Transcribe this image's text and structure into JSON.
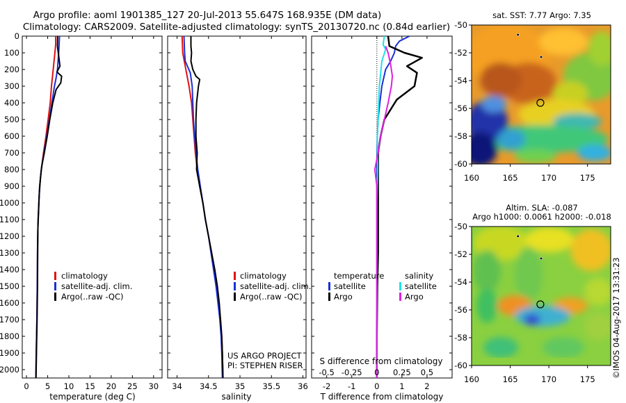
{
  "header": {
    "line1": "Argo profile: aoml 1901385_127 20-Jul-2013 55.647S 168.935E (DM data)",
    "line2": "Climatology: CARS2009. Satellite-adjusted climatology: synTS_20130720.nc (0.84d earlier)"
  },
  "depth_ticks": [
    "0",
    "100",
    "200",
    "300",
    "400",
    "500",
    "600",
    "700",
    "800",
    "900",
    "1000",
    "1100",
    "1200",
    "1300",
    "1400",
    "1500",
    "1600",
    "1700",
    "1800",
    "1900",
    "2000"
  ],
  "colors": {
    "climatology": "#e01010",
    "satellite": "#1a2fd6",
    "argo": "#000000",
    "argo_s_diff": "#e020e0",
    "sat_s_diff": "#20e0e8"
  },
  "chart_data": [
    {
      "type": "line",
      "xlabel": "temperature (deg C)",
      "xlim": [
        -1,
        32
      ],
      "ylim": [
        2050,
        0
      ],
      "xticks": [
        0,
        5,
        10,
        15,
        20,
        25,
        30
      ],
      "legend": [
        "climatology",
        "satellite-adj. clim.",
        "Argo(..raw -QC)"
      ],
      "legend_placement": "lower-right",
      "series": [
        {
          "name": "climatology",
          "color": "#e01010",
          "points": [
            [
              6.9,
              0
            ],
            [
              6.9,
              50
            ],
            [
              6.7,
              100
            ],
            [
              6.3,
              200
            ],
            [
              5.9,
              300
            ],
            [
              5.6,
              400
            ],
            [
              5.1,
              500
            ],
            [
              4.6,
              600
            ],
            [
              4.0,
              700
            ],
            [
              3.5,
              800
            ],
            [
              3.1,
              900
            ],
            [
              2.9,
              1000
            ],
            [
              2.75,
              1100
            ],
            [
              2.65,
              1200
            ],
            [
              2.6,
              1300
            ],
            [
              2.55,
              1500
            ],
            [
              2.45,
              1700
            ],
            [
              2.3,
              1900
            ],
            [
              2.2,
              2050
            ]
          ]
        },
        {
          "name": "satellite-adj. clim.",
          "color": "#1a2fd6",
          "points": [
            [
              7.8,
              0
            ],
            [
              7.7,
              50
            ],
            [
              7.6,
              100
            ],
            [
              7.3,
              200
            ],
            [
              7.0,
              250
            ],
            [
              6.6,
              300
            ],
            [
              6.0,
              400
            ],
            [
              5.4,
              500
            ],
            [
              4.8,
              600
            ],
            [
              4.1,
              700
            ],
            [
              3.5,
              800
            ],
            [
              3.1,
              900
            ],
            [
              2.9,
              1000
            ],
            [
              2.75,
              1100
            ],
            [
              2.65,
              1200
            ],
            [
              2.6,
              1300
            ],
            [
              2.55,
              1500
            ],
            [
              2.45,
              1700
            ],
            [
              2.3,
              1900
            ],
            [
              2.2,
              2050
            ]
          ]
        },
        {
          "name": "Argo(..raw -QC)",
          "color": "#000000",
          "points": [
            [
              7.35,
              0
            ],
            [
              7.3,
              60
            ],
            [
              7.6,
              120
            ],
            [
              7.9,
              180
            ],
            [
              7.2,
              215
            ],
            [
              8.3,
              240
            ],
            [
              8.1,
              280
            ],
            [
              7.0,
              320
            ],
            [
              6.2,
              400
            ],
            [
              5.5,
              500
            ],
            [
              4.9,
              600
            ],
            [
              4.2,
              700
            ],
            [
              3.6,
              780
            ],
            [
              3.3,
              850
            ],
            [
              3.0,
              950
            ],
            [
              2.85,
              1050
            ],
            [
              2.7,
              1150
            ],
            [
              2.65,
              1300
            ],
            [
              2.6,
              1500
            ],
            [
              2.5,
              1700
            ],
            [
              2.35,
              1900
            ],
            [
              2.25,
              2050
            ]
          ]
        }
      ]
    },
    {
      "type": "line",
      "xlabel": "salinity",
      "xlim": [
        33.85,
        36.05
      ],
      "ylim": [
        2050,
        0
      ],
      "xticks": [
        34,
        34.5,
        35,
        35.5,
        36
      ],
      "legend": [
        "climatology",
        "satellite-adj. clim.",
        "Argo(..raw -QC)"
      ],
      "legend_placement": "lower-right",
      "annotation": [
        "US ARGO PROJECT",
        "PI: STEPHEN RISER"
      ],
      "series": [
        {
          "name": "climatology",
          "color": "#e01010",
          "points": [
            [
              34.08,
              0
            ],
            [
              34.09,
              100
            ],
            [
              34.14,
              200
            ],
            [
              34.19,
              300
            ],
            [
              34.23,
              400
            ],
            [
              34.25,
              500
            ],
            [
              34.27,
              600
            ],
            [
              34.29,
              700
            ],
            [
              34.32,
              800
            ],
            [
              34.36,
              900
            ],
            [
              34.41,
              1000
            ],
            [
              34.45,
              1100
            ],
            [
              34.5,
              1200
            ],
            [
              34.55,
              1300
            ],
            [
              34.59,
              1400
            ],
            [
              34.63,
              1500
            ],
            [
              34.66,
              1600
            ],
            [
              34.69,
              1700
            ],
            [
              34.71,
              1800
            ],
            [
              34.72,
              1900
            ],
            [
              34.73,
              2050
            ]
          ]
        },
        {
          "name": "satellite-adj. clim.",
          "color": "#1a2fd6",
          "points": [
            [
              34.11,
              0
            ],
            [
              34.12,
              100
            ],
            [
              34.13,
              150
            ],
            [
              34.21,
              220
            ],
            [
              34.24,
              300
            ],
            [
              34.25,
              400
            ],
            [
              34.26,
              500
            ],
            [
              34.28,
              600
            ],
            [
              34.3,
              700
            ],
            [
              34.33,
              800
            ],
            [
              34.37,
              900
            ],
            [
              34.41,
              1000
            ],
            [
              34.45,
              1100
            ],
            [
              34.5,
              1200
            ],
            [
              34.54,
              1300
            ],
            [
              34.58,
              1400
            ],
            [
              34.62,
              1500
            ],
            [
              34.65,
              1600
            ],
            [
              34.68,
              1700
            ],
            [
              34.7,
              1800
            ],
            [
              34.71,
              1900
            ],
            [
              34.72,
              2050
            ]
          ]
        },
        {
          "name": "Argo(..raw -QC)",
          "color": "#000000",
          "points": [
            [
              34.22,
              0
            ],
            [
              34.22,
              60
            ],
            [
              34.23,
              100
            ],
            [
              34.22,
              150
            ],
            [
              34.25,
              200
            ],
            [
              34.3,
              240
            ],
            [
              34.36,
              260
            ],
            [
              34.34,
              300
            ],
            [
              34.31,
              400
            ],
            [
              34.3,
              500
            ],
            [
              34.3,
              600
            ],
            [
              34.32,
              700
            ],
            [
              34.31,
              800
            ],
            [
              34.36,
              900
            ],
            [
              34.41,
              1000
            ],
            [
              34.45,
              1100
            ],
            [
              34.5,
              1200
            ],
            [
              34.55,
              1300
            ],
            [
              34.6,
              1400
            ],
            [
              34.64,
              1500
            ],
            [
              34.67,
              1600
            ],
            [
              34.69,
              1700
            ],
            [
              34.71,
              1800
            ],
            [
              34.72,
              1900
            ],
            [
              34.73,
              2050
            ]
          ]
        }
      ]
    },
    {
      "type": "line",
      "xlabel": "T difference from climatology",
      "xlabel2": "S difference from climatology",
      "xlim": [
        -2.6,
        3.0
      ],
      "ylim": [
        2050,
        0
      ],
      "xticks": [
        -2,
        -1,
        0,
        1,
        2
      ],
      "xticks2": [
        -0.5,
        -0.25,
        0,
        0.25,
        0.5
      ],
      "legend_temperature": {
        "title": "temperature",
        "items": [
          "satellite",
          "Argo"
        ]
      },
      "legend_salinity": {
        "title": "salinity",
        "items": [
          "satellite",
          "Argo"
        ]
      },
      "legend_placement": "lower-center",
      "series": [
        {
          "name": "temperature satellite",
          "color": "#1a2fd6",
          "points": [
            [
              1.3,
              0
            ],
            [
              0.9,
              30
            ],
            [
              0.75,
              60
            ],
            [
              0.7,
              100
            ],
            [
              0.55,
              150
            ],
            [
              0.35,
              200
            ],
            [
              0.2,
              300
            ],
            [
              0.12,
              400
            ],
            [
              0.05,
              500
            ],
            [
              0.02,
              600
            ],
            [
              0.0,
              800
            ],
            [
              0.0,
              1000
            ],
            [
              0.0,
              1500
            ],
            [
              0.0,
              2050
            ]
          ]
        },
        {
          "name": "temperature Argo",
          "color": "#000000",
          "points": [
            [
              0.45,
              0
            ],
            [
              0.5,
              60
            ],
            [
              1.1,
              100
            ],
            [
              1.8,
              130
            ],
            [
              1.2,
              180
            ],
            [
              1.6,
              220
            ],
            [
              1.5,
              300
            ],
            [
              0.8,
              380
            ],
            [
              0.3,
              500
            ],
            [
              0.15,
              600
            ],
            [
              0.05,
              700
            ],
            [
              0.05,
              800
            ],
            [
              0.05,
              1000
            ],
            [
              0.05,
              1300
            ],
            [
              0.02,
              1500
            ],
            [
              0.0,
              1800
            ],
            [
              0.0,
              2050
            ]
          ]
        },
        {
          "name": "salinity satellite",
          "color": "#20e0e8",
          "points": [
            [
              0.3,
              0
            ],
            [
              0.25,
              50
            ],
            [
              0.35,
              80
            ],
            [
              0.2,
              150
            ],
            [
              0.1,
              300
            ],
            [
              0.05,
              500
            ],
            [
              0.02,
              600
            ],
            [
              0.03,
              800
            ],
            [
              0.0,
              1000
            ],
            [
              0.0,
              1500
            ],
            [
              0.0,
              2050
            ]
          ]
        },
        {
          "name": "salinity Argo",
          "color": "#e020e0",
          "points": [
            [
              0.35,
              60
            ],
            [
              0.45,
              100
            ],
            [
              0.55,
              170
            ],
            [
              0.62,
              240
            ],
            [
              0.58,
              300
            ],
            [
              0.45,
              400
            ],
            [
              0.3,
              500
            ],
            [
              0.15,
              600
            ],
            [
              0.05,
              700
            ],
            [
              -0.08,
              800
            ],
            [
              0.0,
              900
            ],
            [
              0.0,
              1100
            ],
            [
              0.0,
              1500
            ],
            [
              0.0,
              2050
            ]
          ]
        }
      ]
    },
    {
      "type": "heatmap",
      "title": "sat. SST: 7.77 Argo: 7.35",
      "xticks": [
        160,
        165,
        170,
        175
      ],
      "yticks": [
        -50,
        -52,
        -54,
        -56,
        -58,
        -60
      ],
      "xlim": [
        160,
        178
      ],
      "ylim": [
        -61,
        -50
      ],
      "argo_marker": [
        168.9,
        -55.6
      ],
      "past_positions": [
        [
          166.0,
          -50.7
        ],
        [
          169.0,
          -52.3
        ]
      ]
    },
    {
      "type": "heatmap",
      "title": "Altim. SLA: -0.087",
      "subtitle": "Argo h1000: 0.0061 h2000: -0.018",
      "xticks": [
        160,
        165,
        170,
        175
      ],
      "yticks": [
        -50,
        -52,
        -54,
        -56,
        -58,
        -60
      ],
      "xlim": [
        160,
        178
      ],
      "ylim": [
        -61,
        -50
      ],
      "argo_marker": [
        168.9,
        -55.6
      ],
      "past_positions": [
        [
          166.0,
          -50.7
        ],
        [
          169.0,
          -52.3
        ]
      ]
    }
  ],
  "footer": "©IMOS 04-Aug-2017 13:31:23"
}
